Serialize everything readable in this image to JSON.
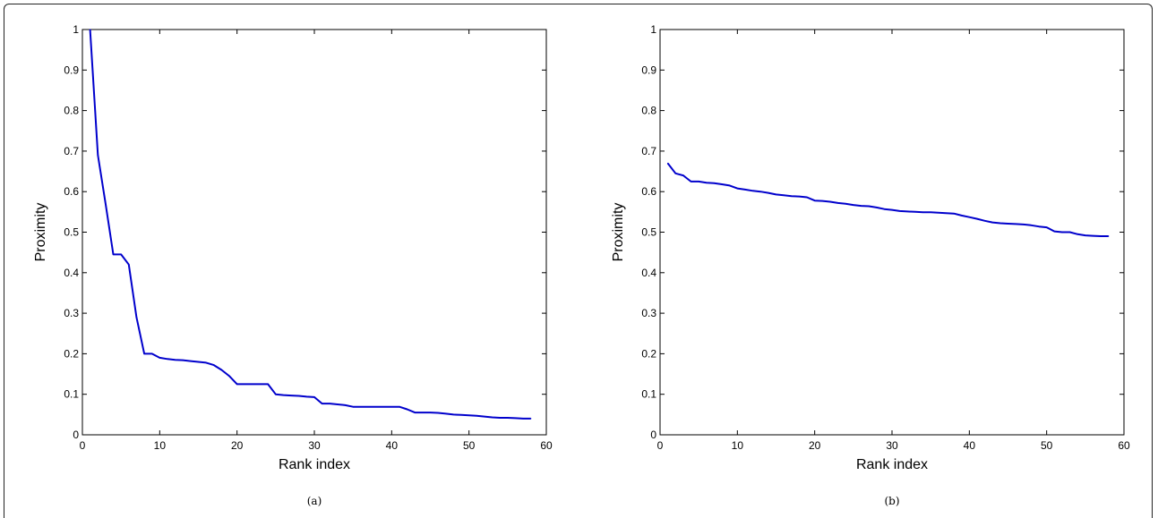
{
  "chart_data": [
    {
      "panel": "(a)",
      "type": "line",
      "xlabel": "Rank index",
      "ylabel": "Proximity",
      "xlim": [
        0,
        60
      ],
      "ylim": [
        0,
        1
      ],
      "xticks": [
        0,
        10,
        20,
        30,
        40,
        50,
        60
      ],
      "yticks": [
        0,
        0.1,
        0.2,
        0.3,
        0.4,
        0.5,
        0.6,
        0.7,
        0.8,
        0.9,
        1
      ],
      "grid": false,
      "line_color": "#0000cc",
      "series": [
        {
          "x": [
            1,
            2,
            3,
            4,
            5,
            6,
            7,
            8,
            9,
            10,
            11,
            12,
            13,
            14,
            15,
            16,
            17,
            18,
            19,
            20,
            21,
            22,
            23,
            24,
            25,
            26,
            27,
            28,
            29,
            30,
            31,
            32,
            33,
            34,
            35,
            36,
            37,
            38,
            39,
            40,
            41,
            42,
            43,
            44,
            45,
            46,
            47,
            48,
            49,
            50,
            51,
            52,
            53,
            54,
            55,
            56,
            57,
            58
          ],
          "y": [
            1.0,
            0.69,
            0.57,
            0.445,
            0.445,
            0.42,
            0.29,
            0.2,
            0.2,
            0.19,
            0.187,
            0.185,
            0.184,
            0.182,
            0.18,
            0.178,
            0.172,
            0.16,
            0.145,
            0.125,
            0.125,
            0.125,
            0.125,
            0.125,
            0.1,
            0.098,
            0.097,
            0.096,
            0.094,
            0.093,
            0.077,
            0.077,
            0.075,
            0.073,
            0.069,
            0.069,
            0.069,
            0.069,
            0.069,
            0.069,
            0.069,
            0.063,
            0.055,
            0.055,
            0.055,
            0.054,
            0.052,
            0.05,
            0.049,
            0.048,
            0.047,
            0.045,
            0.043,
            0.042,
            0.042,
            0.041,
            0.04,
            0.04
          ]
        }
      ]
    },
    {
      "panel": "(b)",
      "type": "line",
      "xlabel": "Rank index",
      "ylabel": "Proximity",
      "xlim": [
        0,
        60
      ],
      "ylim": [
        0,
        1
      ],
      "xticks": [
        0,
        10,
        20,
        30,
        40,
        50,
        60
      ],
      "yticks": [
        0,
        0.1,
        0.2,
        0.3,
        0.4,
        0.5,
        0.6,
        0.7,
        0.8,
        0.9,
        1
      ],
      "grid": false,
      "line_color": "#0000cc",
      "series": [
        {
          "x": [
            1,
            2,
            3,
            4,
            5,
            6,
            7,
            8,
            9,
            10,
            11,
            12,
            13,
            14,
            15,
            16,
            17,
            18,
            19,
            20,
            21,
            22,
            23,
            24,
            25,
            26,
            27,
            28,
            29,
            30,
            31,
            32,
            33,
            34,
            35,
            36,
            37,
            38,
            39,
            40,
            41,
            42,
            43,
            44,
            45,
            46,
            47,
            48,
            49,
            50,
            51,
            52,
            53,
            54,
            55,
            56,
            57,
            58
          ],
          "y": [
            0.67,
            0.645,
            0.64,
            0.625,
            0.625,
            0.622,
            0.621,
            0.618,
            0.615,
            0.608,
            0.605,
            0.602,
            0.6,
            0.597,
            0.593,
            0.591,
            0.589,
            0.588,
            0.586,
            0.578,
            0.577,
            0.575,
            0.572,
            0.57,
            0.567,
            0.565,
            0.564,
            0.561,
            0.557,
            0.555,
            0.552,
            0.551,
            0.55,
            0.549,
            0.549,
            0.548,
            0.547,
            0.546,
            0.541,
            0.537,
            0.533,
            0.528,
            0.524,
            0.522,
            0.521,
            0.52,
            0.519,
            0.517,
            0.514,
            0.512,
            0.502,
            0.5,
            0.5,
            0.495,
            0.492,
            0.491,
            0.49,
            0.49
          ]
        }
      ]
    }
  ]
}
